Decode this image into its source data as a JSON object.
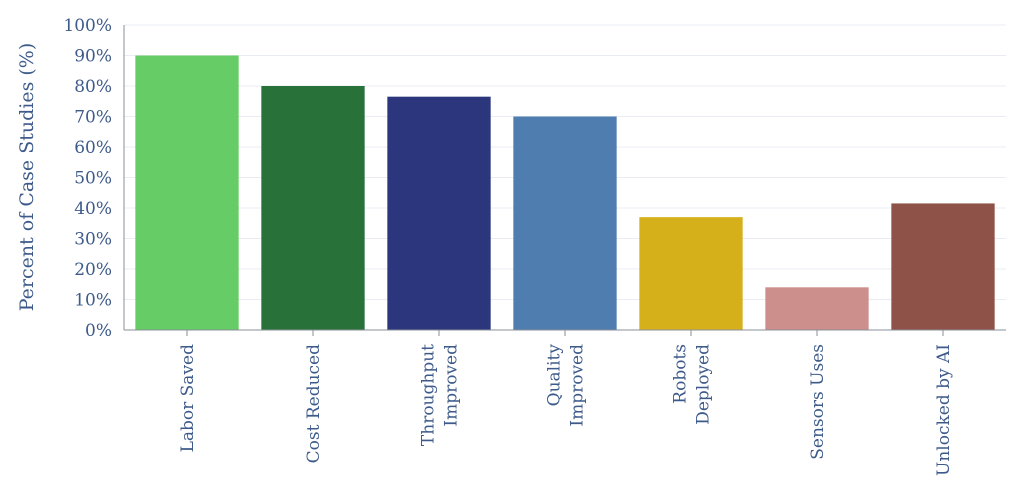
{
  "chart_data": {
    "type": "bar",
    "title": "",
    "xlabel": "",
    "ylabel": "Percent of Case Studies (%)",
    "ylim": [
      0,
      100
    ],
    "yticks": [
      0,
      10,
      20,
      30,
      40,
      50,
      60,
      70,
      80,
      90,
      100
    ],
    "ytick_suffix": "%",
    "grid": true,
    "categories": [
      [
        "Labor Saved"
      ],
      [
        "Cost Reduced"
      ],
      [
        "Throughput",
        "Improved"
      ],
      [
        "Quality",
        "Improved"
      ],
      [
        "Robots",
        "Deployed"
      ],
      [
        "Sensors Uses"
      ],
      [
        "Unlocked by AI"
      ]
    ],
    "values": [
      90,
      80,
      76.5,
      70,
      37,
      14,
      41.5
    ],
    "colors": [
      "#66cc66",
      "#287138",
      "#2b367d",
      "#4f7db0",
      "#d6b01a",
      "#cc8f8c",
      "#8f5248"
    ]
  }
}
